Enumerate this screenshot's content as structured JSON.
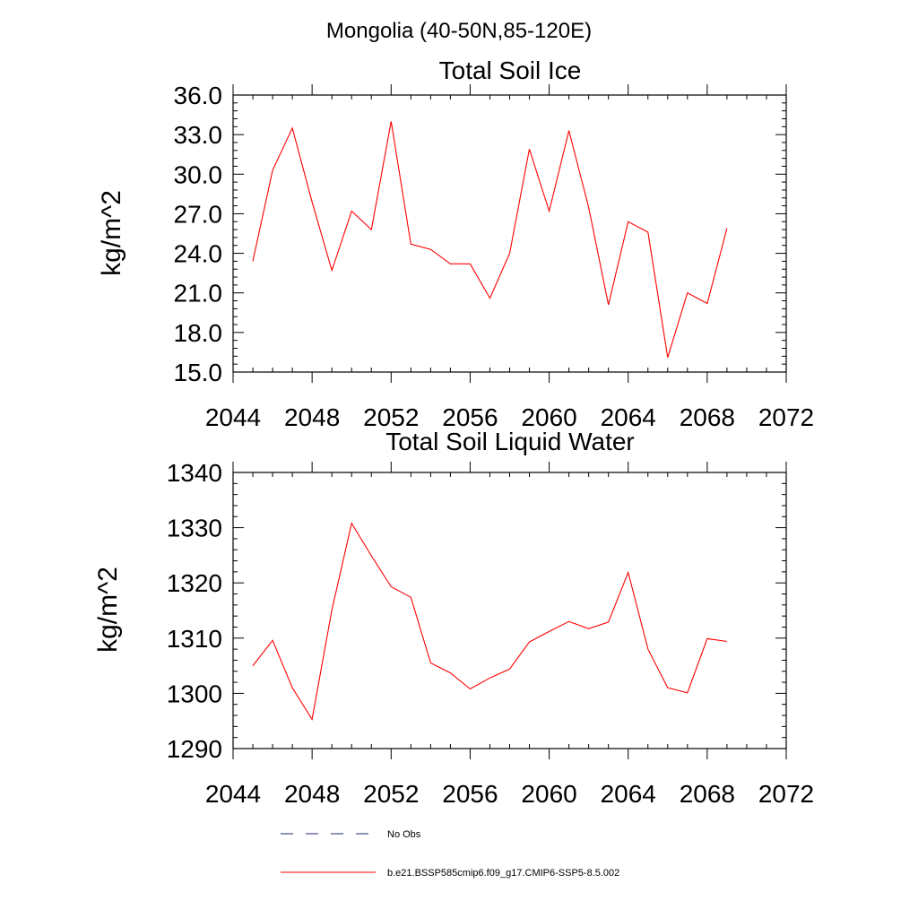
{
  "page_title": "Mongolia (40-50N,85-120E)",
  "colors": {
    "series": "#ff0000",
    "obs": "#1f2a7a",
    "axis": "#000000"
  },
  "chart_data": [
    {
      "type": "line",
      "title": "Total Soil Ice",
      "xlabel": "",
      "ylabel": "kg/m^2",
      "xlim": [
        2044,
        2072
      ],
      "ylim": [
        15,
        36
      ],
      "x_ticks": [
        "2044",
        "2048",
        "2052",
        "2056",
        "2060",
        "2064",
        "2068",
        "2072"
      ],
      "y_ticks": [
        "15.0",
        "18.0",
        "21.0",
        "24.0",
        "27.0",
        "30.0",
        "33.0",
        "36.0"
      ],
      "grid": false,
      "x": [
        2045,
        2046,
        2047,
        2048,
        2049,
        2050,
        2051,
        2052,
        2053,
        2054,
        2055,
        2056,
        2057,
        2058,
        2059,
        2060,
        2061,
        2062,
        2063,
        2064,
        2065,
        2066,
        2067,
        2068,
        2069
      ],
      "series": [
        {
          "name": "b.e21.BSSP585cmip6.f09_g17.CMIP6-SSP5-8.5.002",
          "values": [
            23.4,
            30.3,
            33.5,
            27.9,
            22.7,
            27.2,
            25.8,
            34.0,
            24.7,
            24.3,
            23.2,
            23.2,
            20.6,
            24.0,
            31.9,
            27.2,
            33.3,
            27.5,
            20.1,
            26.4,
            25.6,
            16.1,
            21.0,
            20.2,
            25.9
          ]
        }
      ]
    },
    {
      "type": "line",
      "title": "Total Soil Liquid Water",
      "xlabel": "",
      "ylabel": "kg/m^2",
      "xlim": [
        2044,
        2072
      ],
      "ylim": [
        1290,
        1340
      ],
      "x_ticks": [
        "2044",
        "2048",
        "2052",
        "2056",
        "2060",
        "2064",
        "2068",
        "2072"
      ],
      "y_ticks": [
        "1290",
        "1300",
        "1310",
        "1320",
        "1330",
        "1340"
      ],
      "grid": false,
      "x": [
        2045,
        2046,
        2047,
        2048,
        2049,
        2050,
        2051,
        2052,
        2053,
        2054,
        2055,
        2056,
        2057,
        2058,
        2059,
        2060,
        2061,
        2062,
        2063,
        2064,
        2065,
        2066,
        2067,
        2068,
        2069
      ],
      "series": [
        {
          "name": "b.e21.BSSP585cmip6.f09_g17.CMIP6-SSP5-8.5.002",
          "values": [
            1305.0,
            1309.6,
            1301.0,
            1295.3,
            1315.1,
            1330.8,
            1324.9,
            1319.3,
            1317.4,
            1305.5,
            1303.7,
            1300.8,
            1302.8,
            1304.4,
            1309.3,
            1311.2,
            1313.0,
            1311.7,
            1312.9,
            1321.9,
            1308.0,
            1301.0,
            1300.1,
            1309.9,
            1309.4
          ]
        }
      ]
    }
  ],
  "legend": [
    {
      "label": "No Obs",
      "style": "dashed",
      "color": "#1f2a7a"
    },
    {
      "label": "b.e21.BSSP585cmip6.f09_g17.CMIP6-SSP5-8.5.002",
      "style": "solid",
      "color": "#ff0000"
    }
  ]
}
